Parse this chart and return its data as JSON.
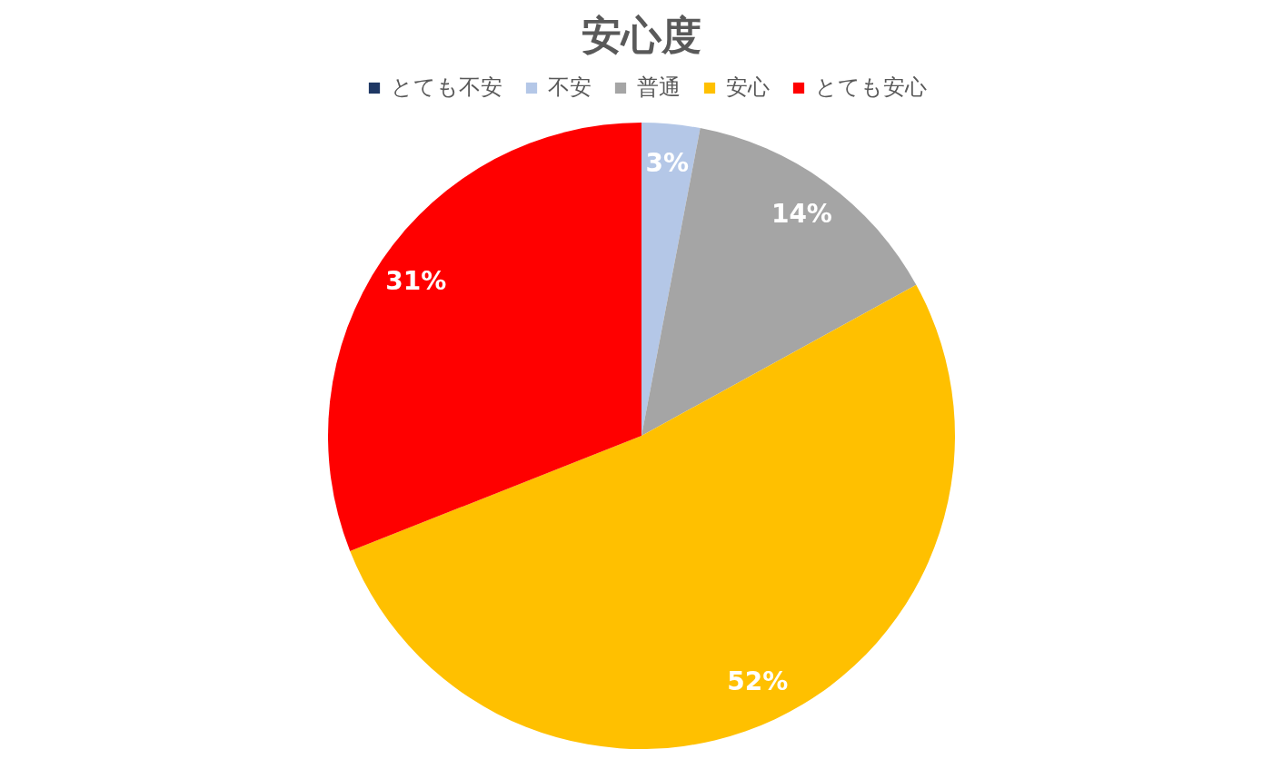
{
  "chart_data": {
    "type": "pie",
    "title": "安心度",
    "categories": [
      "とても不安",
      "不安",
      "普通",
      "安心",
      "とても安心"
    ],
    "values": [
      0,
      3,
      14,
      52,
      31
    ],
    "colors": [
      "#1f3864",
      "#b4c7e7",
      "#a5a5a5",
      "#ffc000",
      "#ff0000"
    ],
    "value_labels": [
      null,
      "3%",
      "14%",
      "52%",
      "31%"
    ],
    "legend": "top"
  }
}
